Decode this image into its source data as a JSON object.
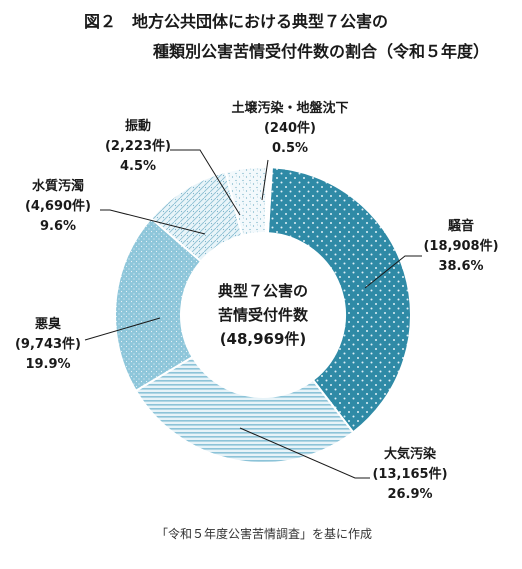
{
  "title_line1": "図２　地方公共団体における典型７公害の",
  "title_line2": "種類別公害苦情受付件数の割合（令和５年度）",
  "center": {
    "line1": "典型７公害の",
    "line2": "苦情受付件数",
    "line3": "(48,969件)"
  },
  "source": "「令和５年度公害苦情調査」を基に作成",
  "chart_data": {
    "type": "pie",
    "donut": true,
    "total": 48969,
    "slices": [
      {
        "name": "騒音",
        "value": 18908,
        "count_text": "(18,908件)",
        "percent_text": "38.6%",
        "fill": "#2f8aa6",
        "pattern": "dots"
      },
      {
        "name": "大気汚染",
        "value": 13165,
        "count_text": "(13,165件)",
        "percent_text": "26.9%",
        "fill": "#a8d3e2",
        "pattern": "hstripes"
      },
      {
        "name": "悪臭",
        "value": 9743,
        "count_text": "(9,743件)",
        "percent_text": "19.9%",
        "fill": "#86c2d8",
        "pattern": "fine-dots"
      },
      {
        "name": "水質汚濁",
        "value": 4690,
        "count_text": "(4,690件)",
        "percent_text": "9.6%",
        "fill": "#d7ebf3",
        "pattern": "diag"
      },
      {
        "name": "振動",
        "value": 2223,
        "count_text": "(2,223件)",
        "percent_text": "4.5%",
        "fill": "#f0f8fb",
        "pattern": "speckle"
      },
      {
        "name": "土壌汚染・地盤沈下",
        "value": 240,
        "count_text": "(240件)",
        "percent_text": "0.5%",
        "fill": "#ffffff",
        "pattern": "none"
      }
    ]
  }
}
